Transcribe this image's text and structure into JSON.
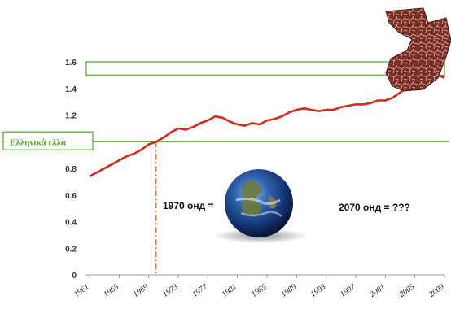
{
  "chart_data": {
    "type": "line",
    "title": "",
    "xlabel": "",
    "ylabel": "",
    "ylim": [
      0,
      1.6
    ],
    "xlim": [
      1961,
      2009
    ],
    "x_tick_labels": [
      "1961",
      "1965",
      "1969",
      "1973",
      "1977",
      "1981",
      "1985",
      "1989",
      "1993",
      "1997",
      "2001",
      "2005",
      "2009"
    ],
    "y_tick_labels": [
      "0",
      "0.2",
      "0.4",
      "0.6",
      "0.8",
      "1",
      "1.2",
      "1.4",
      "1.6"
    ],
    "series": [
      {
        "color": "#d42a1a",
        "x": [
          1961,
          1962,
          1963,
          1964,
          1965,
          1966,
          1967,
          1968,
          1969,
          1970,
          1971,
          1972,
          1973,
          1974,
          1975,
          1976,
          1977,
          1978,
          1979,
          1980,
          1981,
          1982,
          1983,
          1984,
          1985,
          1986,
          1987,
          1988,
          1989,
          1990,
          1991,
          1992,
          1993,
          1994,
          1995,
          1996,
          1997,
          1998,
          1999,
          2000,
          2001,
          2002,
          2003,
          2004,
          2005,
          2006,
          2007,
          2008,
          2009
        ],
        "values": [
          0.74,
          0.77,
          0.8,
          0.83,
          0.86,
          0.89,
          0.91,
          0.94,
          0.98,
          1.0,
          1.03,
          1.07,
          1.1,
          1.09,
          1.11,
          1.14,
          1.16,
          1.19,
          1.18,
          1.15,
          1.13,
          1.12,
          1.14,
          1.13,
          1.16,
          1.17,
          1.19,
          1.22,
          1.24,
          1.25,
          1.24,
          1.23,
          1.24,
          1.24,
          1.26,
          1.27,
          1.28,
          1.28,
          1.29,
          1.31,
          1.31,
          1.33,
          1.37,
          1.41,
          1.44,
          1.47,
          1.49,
          1.5,
          1.48
        ]
      }
    ],
    "reference_line": {
      "label": "Ελληνικά ελλα",
      "value": 1.0,
      "color": "#6ab04c"
    },
    "highlight_band": {
      "from": 1.5,
      "to": 1.6,
      "color": "#6ab04c"
    },
    "marker_year": 1970,
    "marker_color": "#e8762b",
    "annotations": {
      "left": "1970 онд =",
      "right": "2070 онд = ???"
    },
    "decorations": {
      "earth_icon": "earth-globe-icon",
      "dry_earth_icon": "cracked-earth-icon"
    }
  }
}
